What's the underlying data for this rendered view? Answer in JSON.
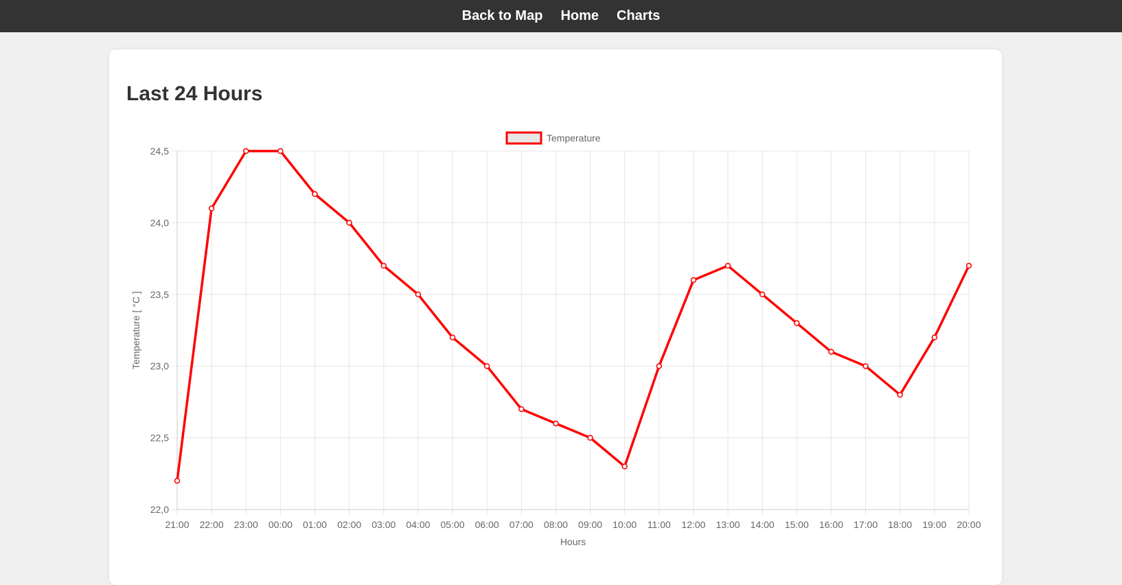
{
  "nav": {
    "items": [
      {
        "label": "Back to Map"
      },
      {
        "label": "Home"
      },
      {
        "label": "Charts"
      }
    ]
  },
  "page": {
    "title": "Last 24 Hours"
  },
  "colors": {
    "line": "#ff0000",
    "legend_fill": "#e6e6e6",
    "grid": "#e5e5e5",
    "axis_text": "#666666"
  },
  "chart_data": {
    "type": "line",
    "title": "",
    "xlabel": "Hours",
    "ylabel": "Temperature  [ °C ]",
    "legend_position": "top-center",
    "grid": true,
    "categories": [
      "21:00",
      "22:00",
      "23:00",
      "00:00",
      "01:00",
      "02:00",
      "03:00",
      "04:00",
      "05:00",
      "06:00",
      "07:00",
      "08:00",
      "09:00",
      "10:00",
      "11:00",
      "12:00",
      "13:00",
      "14:00",
      "15:00",
      "16:00",
      "17:00",
      "18:00",
      "19:00",
      "20:00"
    ],
    "y_ticks": [
      "22,0",
      "22,5",
      "23,0",
      "23,5",
      "24,0",
      "24,5"
    ],
    "ylim": [
      22.0,
      24.5
    ],
    "series": [
      {
        "name": "Temperature",
        "values": [
          22.2,
          24.1,
          24.5,
          24.5,
          24.2,
          24.0,
          23.7,
          23.5,
          23.2,
          23.0,
          22.7,
          22.6,
          22.5,
          22.3,
          23.0,
          23.6,
          23.7,
          23.5,
          23.3,
          23.1,
          23.0,
          22.8,
          23.2,
          23.7
        ]
      }
    ]
  }
}
